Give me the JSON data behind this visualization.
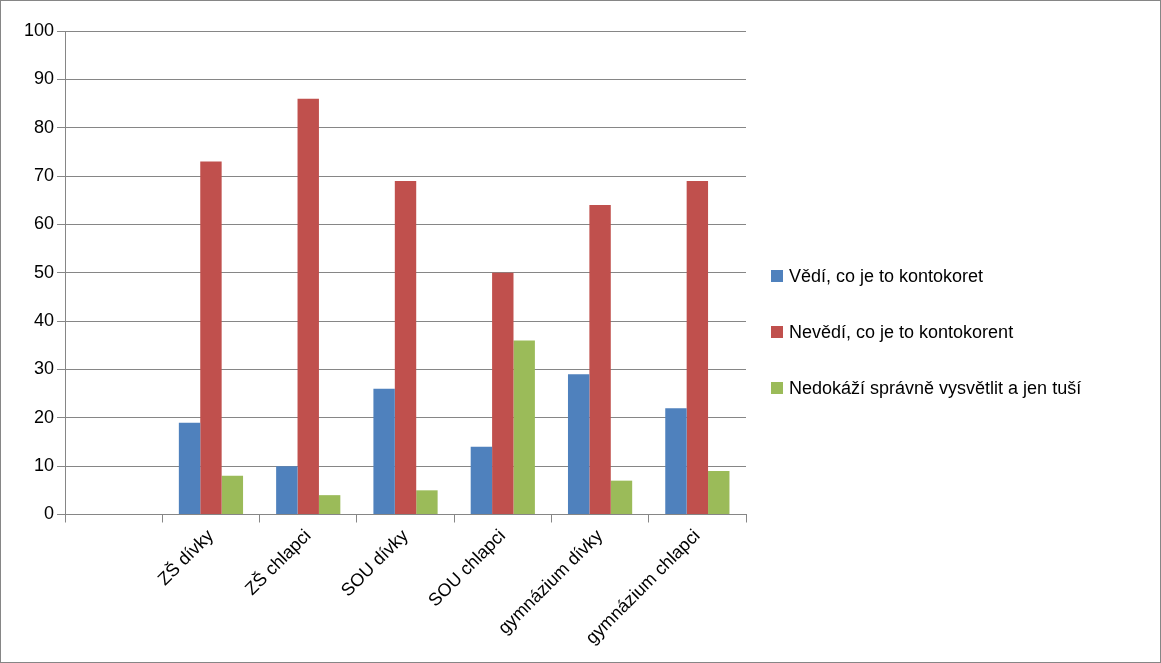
{
  "chart_data": {
    "type": "bar",
    "categories": [
      null,
      "ZŠ dívky",
      "ZŠ chlapci",
      "SOU dívky",
      "SOU chlapci",
      "gymnázium dívky",
      "gymnázium chlapci"
    ],
    "series": [
      {
        "name": "Vědí, co je to kontokoret",
        "color": "#4f81bd",
        "values": [
          null,
          19,
          10,
          26,
          14,
          29,
          22
        ]
      },
      {
        "name": "Nevědí, co je to kontokorent",
        "color": "#c0504d",
        "values": [
          null,
          73,
          86,
          69,
          50,
          64,
          69
        ]
      },
      {
        "name": "Nedokáží správně vysvětlit a jen tuší",
        "color": "#9bbb59",
        "values": [
          null,
          8,
          4,
          5,
          36,
          7,
          9
        ]
      }
    ],
    "ylim": [
      0,
      100
    ],
    "yticks": [
      0,
      10,
      20,
      30,
      40,
      50,
      60,
      70,
      80,
      90,
      100
    ],
    "grid": "y",
    "legend": "right"
  }
}
